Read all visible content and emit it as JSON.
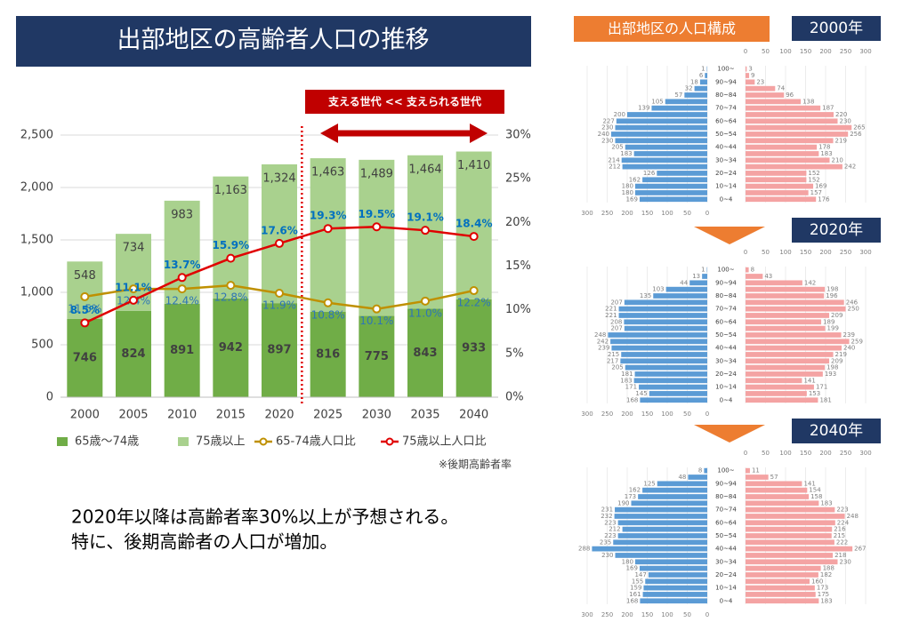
{
  "chart_data": [
    {
      "type": "combo",
      "title": "出部地区の高齢者人口の推移",
      "categories": [
        "2000",
        "2005",
        "2010",
        "2015",
        "2020",
        "2025",
        "2030",
        "2035",
        "2040"
      ],
      "series": [
        {
          "name": "65歳～74歳",
          "type": "bar",
          "color": "#70ad47",
          "values": [
            746,
            824,
            891,
            942,
            897,
            816,
            775,
            843,
            933
          ]
        },
        {
          "name": "75歳以上",
          "type": "bar",
          "color": "#a9d18e",
          "values": [
            548,
            734,
            983,
            1163,
            1324,
            1463,
            1489,
            1464,
            1410
          ],
          "value_labels": [
            "548",
            "734",
            "983",
            "1,163",
            "1,324",
            "1,463",
            "1,489",
            "1,464",
            "1,410"
          ]
        },
        {
          "name": "65-74歳人口比",
          "type": "line",
          "axis": "y2",
          "color": "#bf9000",
          "values": [
            11.5,
            12.4,
            12.4,
            12.8,
            11.9,
            10.8,
            10.1,
            11.0,
            12.2
          ],
          "value_labels": [
            "11.5%",
            "12.4%",
            "12.4%",
            "12.8%",
            "11.9%",
            "10.8%",
            "10.1%",
            "11.0%",
            "12.2%"
          ]
        },
        {
          "name": "75歳以上人口比",
          "type": "line",
          "axis": "y2",
          "color": "#e00000",
          "values": [
            8.5,
            11.1,
            13.7,
            15.9,
            17.6,
            19.3,
            19.5,
            19.1,
            18.4
          ],
          "value_labels": [
            "8.5%",
            "11.1%",
            "13.7%",
            "15.9%",
            "17.6%",
            "19.3%",
            "19.5%",
            "19.1%",
            "18.4%"
          ]
        }
      ],
      "ylim": [
        0,
        2500
      ],
      "yticks": [
        0,
        500,
        {
          "value": 1000,
          "label": "1,000"
        },
        {
          "value": 1500,
          "label": "1,500"
        },
        {
          "value": 2000,
          "label": "2,000"
        },
        {
          "value": 2500,
          "label": "2,500"
        }
      ],
      "y2lim": [
        0,
        30
      ],
      "y2ticks": [
        {
          "value": 0,
          "label": "0%"
        },
        {
          "value": 5,
          "label": "5%"
        },
        {
          "value": 10,
          "label": "10%"
        },
        {
          "value": 15,
          "label": "15%"
        },
        {
          "value": 20,
          "label": "20%"
        },
        {
          "value": 25,
          "label": "25%"
        },
        {
          "value": 30,
          "label": "30%"
        }
      ],
      "annotations": [
        "支える世代 << 支えられる世代",
        "※後期高齢者率"
      ],
      "legend": "bottom"
    },
    {
      "type": "pyramid",
      "title": "2000年",
      "categories": [
        "100~",
        null,
        "90~94",
        null,
        "80~84",
        null,
        "70~74",
        null,
        "60~64",
        null,
        "50~54",
        null,
        "40~44",
        null,
        "30~34",
        null,
        "20~24",
        null,
        "10~14",
        null,
        "0~4"
      ],
      "series": [
        {
          "color": "#5b9bd5",
          "values": [
            1,
            6,
            18,
            32,
            57,
            105,
            139,
            200,
            227,
            230,
            240,
            230,
            205,
            183,
            214,
            212,
            126,
            162,
            180,
            180,
            169
          ]
        },
        {
          "color": "#f4a3a3",
          "values": [
            3,
            9,
            23,
            74,
            96,
            138,
            187,
            220,
            230,
            265,
            256,
            219,
            178,
            183,
            210,
            242,
            152,
            152,
            169,
            157,
            176
          ]
        }
      ],
      "xlim": [
        0,
        300
      ],
      "xticks": [
        0,
        50,
        100,
        150,
        200,
        250,
        300
      ]
    },
    {
      "type": "pyramid",
      "title": "2020年",
      "categories": [
        "100~",
        null,
        "90~94",
        null,
        "80~84",
        null,
        "70~74",
        null,
        "60~64",
        null,
        "50~54",
        null,
        "40~44",
        null,
        "30~34",
        null,
        "20~24",
        null,
        "10~14",
        null,
        "0~4"
      ],
      "series": [
        {
          "color": "#5b9bd5",
          "values": [
            1,
            13,
            44,
            103,
            135,
            207,
            221,
            221,
            208,
            207,
            248,
            242,
            239,
            215,
            217,
            205,
            181,
            183,
            171,
            145,
            168
          ]
        },
        {
          "color": "#f4a3a3",
          "values": [
            8,
            43,
            142,
            198,
            196,
            246,
            250,
            209,
            189,
            199,
            239,
            259,
            240,
            219,
            209,
            198,
            193,
            141,
            171,
            153,
            181
          ]
        }
      ],
      "xlim": [
        0,
        300
      ],
      "xticks": [
        0,
        50,
        100,
        150,
        200,
        250,
        300
      ]
    },
    {
      "type": "pyramid",
      "title": "2040年",
      "categories": [
        "100~",
        null,
        "90~94",
        null,
        "80~84",
        null,
        "70~74",
        null,
        "60~64",
        null,
        "50~54",
        null,
        "40~44",
        null,
        "30~34",
        null,
        "20~24",
        null,
        "10~14",
        null,
        "0~4"
      ],
      "series": [
        {
          "color": "#5b9bd5",
          "values": [
            8,
            48,
            125,
            162,
            173,
            190,
            231,
            232,
            223,
            212,
            223,
            235,
            288,
            230,
            180,
            169,
            147,
            155,
            159,
            161,
            168
          ]
        },
        {
          "color": "#f4a3a3",
          "values": [
            11,
            57,
            141,
            154,
            158,
            183,
            223,
            248,
            224,
            216,
            215,
            222,
            267,
            218,
            230,
            188,
            182,
            160,
            173,
            175,
            183
          ]
        }
      ],
      "xlim": [
        0,
        300
      ],
      "xticks": [
        0,
        50,
        100,
        150,
        200,
        250,
        300
      ]
    }
  ],
  "pyramid_heading": "出部地区の人口構成",
  "summary": [
    "2020年以降は高齢者率30%以上が予想される。",
    "特に、後期高齢者の人口が増加。"
  ]
}
